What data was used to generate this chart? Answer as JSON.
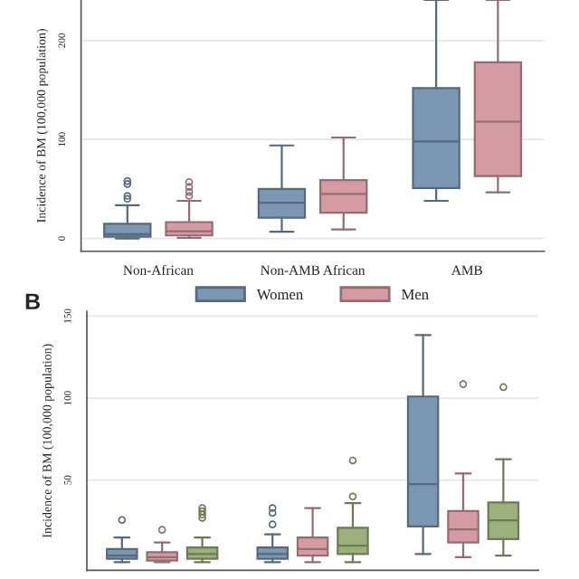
{
  "chart_data": [
    {
      "type": "box",
      "ylabel": "Incidence of BM (100,000 population)",
      "categories": [
        "Non-African",
        "Non-AMB African",
        "AMB"
      ],
      "ylim": [
        -13,
        241
      ],
      "yticks": [
        0,
        100,
        200
      ],
      "grid": "y",
      "legend": "bottom",
      "series": [
        {
          "name": "Women",
          "color": "#7b97b3",
          "boxes": [
            {
              "low": 0,
              "q1": 1.8,
              "median": 4.3,
              "q3": 14.7,
              "high": 33.6,
              "outliers": [
                40,
                43,
                55,
                58
              ]
            },
            {
              "low": 6.7,
              "q1": 21,
              "median": 36,
              "q3": 50,
              "high": 94
            },
            {
              "low": 38,
              "q1": 51,
              "median": 98,
              "q3": 152,
              "high": 241
            }
          ]
        },
        {
          "name": "Men",
          "color": "#d49ca2",
          "boxes": [
            {
              "low": 0.6,
              "q1": 3,
              "median": 7.3,
              "q3": 16.5,
              "high": 38,
              "outliers": [
                43,
                47,
                52,
                57
              ]
            },
            {
              "low": 9,
              "q1": 26,
              "median": 45,
              "q3": 59,
              "high": 102
            },
            {
              "low": 46.5,
              "q1": 63,
              "median": 118,
              "q3": 178,
              "high": 241
            }
          ]
        }
      ]
    },
    {
      "type": "box",
      "ylabel": "Incidence of BM (100,000 population)",
      "annotations": [
        "B"
      ],
      "categories": [
        null,
        null,
        null
      ],
      "ylim": [
        -5,
        153
      ],
      "yticks": [
        50,
        100,
        150
      ],
      "grid": "y",
      "tick_labels": "y",
      "series": [
        {
          "color": "#7b97b3",
          "boxes": [
            {
              "low": 0,
              "q1": 2,
              "median": 4,
              "q3": 8,
              "high": 15,
              "outliers": [
                25.7
              ]
            },
            {
              "low": 0,
              "q1": 2,
              "median": 5,
              "q3": 9,
              "high": 17,
              "outliers": [
                23,
                30,
                33
              ]
            },
            {
              "low": 5,
              "q1": 21.8,
              "median": 47.6,
              "q3": 101,
              "high": 138.5
            }
          ]
        },
        {
          "color": "#d49ca2",
          "boxes": [
            {
              "low": 0,
              "q1": 1,
              "median": 3,
              "q3": 6,
              "high": 12,
              "outliers": [
                19.7
              ]
            },
            {
              "low": 0,
              "q1": 4,
              "median": 8,
              "q3": 15,
              "high": 33
            },
            {
              "low": 3,
              "q1": 12,
              "median": 20,
              "q3": 31.2,
              "high": 54,
              "outliers": [
                108.5
              ]
            }
          ]
        },
        {
          "color": "#9bb07a",
          "boxes": [
            {
              "low": 0,
              "q1": 2,
              "median": 5,
              "q3": 9,
              "high": 15,
              "outliers": [
                27,
                29,
                31,
                33
              ]
            },
            {
              "low": 0,
              "q1": 5,
              "median": 10,
              "q3": 21,
              "high": 36,
              "outliers": [
                40,
                62
              ]
            },
            {
              "low": 4,
              "q1": 14,
              "median": 25.5,
              "q3": 36.4,
              "high": 62.7,
              "outliers": [
                106.7
              ]
            }
          ]
        }
      ]
    }
  ]
}
